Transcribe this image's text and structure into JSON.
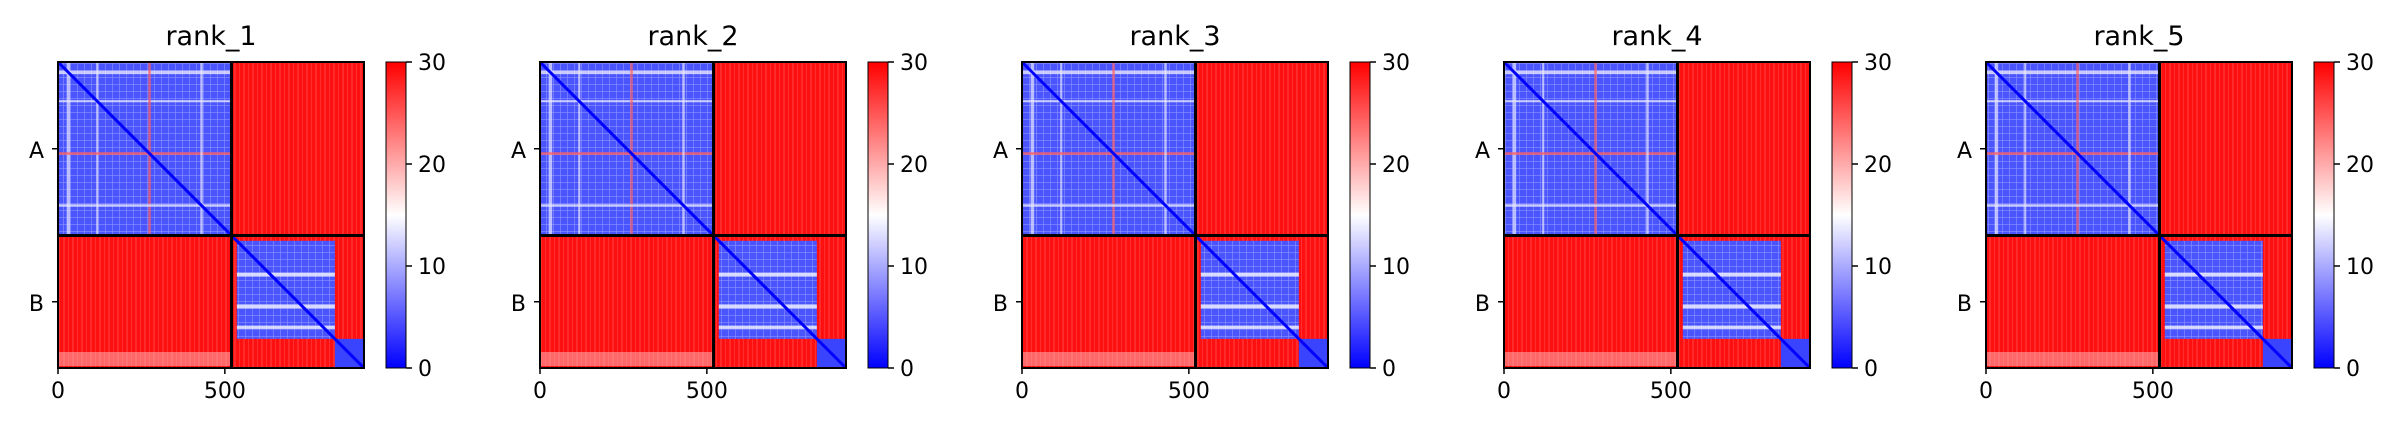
{
  "chart_data": [
    {
      "type": "heatmap",
      "title": "rank_1",
      "chains": [
        "A",
        "B"
      ],
      "chain_break": 520,
      "x_ticks": [
        0,
        500
      ],
      "x_tick_labels": [
        "0",
        "500"
      ],
      "xlim": [
        0,
        917
      ],
      "colorbar": {
        "vmin": 0,
        "vmax": 30,
        "ticks": [
          0,
          10,
          20,
          30
        ],
        "tick_labels": [
          "0",
          "10",
          "20",
          "30"
        ],
        "colormap": "bwr"
      },
      "description_value_range": [
        0,
        30
      ]
    },
    {
      "type": "heatmap",
      "title": "rank_2",
      "chains": [
        "A",
        "B"
      ],
      "chain_break": 520,
      "x_ticks": [
        0,
        500
      ],
      "x_tick_labels": [
        "0",
        "500"
      ],
      "xlim": [
        0,
        917
      ],
      "colorbar": {
        "vmin": 0,
        "vmax": 30,
        "ticks": [
          0,
          10,
          20,
          30
        ],
        "tick_labels": [
          "0",
          "10",
          "20",
          "30"
        ],
        "colormap": "bwr"
      }
    },
    {
      "type": "heatmap",
      "title": "rank_3",
      "chains": [
        "A",
        "B"
      ],
      "chain_break": 520,
      "x_ticks": [
        0,
        500
      ],
      "x_tick_labels": [
        "0",
        "500"
      ],
      "xlim": [
        0,
        917
      ],
      "colorbar": {
        "vmin": 0,
        "vmax": 30,
        "ticks": [
          0,
          10,
          20,
          30
        ],
        "tick_labels": [
          "0",
          "10",
          "20",
          "30"
        ],
        "colormap": "bwr"
      }
    },
    {
      "type": "heatmap",
      "title": "rank_4",
      "chains": [
        "A",
        "B"
      ],
      "chain_break": 520,
      "x_ticks": [
        0,
        500
      ],
      "x_tick_labels": [
        "0",
        "500"
      ],
      "xlim": [
        0,
        917
      ],
      "colorbar": {
        "vmin": 0,
        "vmax": 30,
        "ticks": [
          0,
          10,
          20,
          30
        ],
        "tick_labels": [
          "0",
          "10",
          "20",
          "30"
        ],
        "colormap": "bwr"
      }
    },
    {
      "type": "heatmap",
      "title": "rank_5",
      "chains": [
        "A",
        "B"
      ],
      "chain_break": 520,
      "x_ticks": [
        0,
        500
      ],
      "x_tick_labels": [
        "0",
        "500"
      ],
      "xlim": [
        0,
        917
      ],
      "colorbar": {
        "vmin": 0,
        "vmax": 30,
        "ticks": [
          0,
          10,
          20,
          30
        ],
        "tick_labels": [
          "0",
          "10",
          "20",
          "30"
        ],
        "colormap": "bwr"
      }
    }
  ],
  "colors": {
    "low": "#0000ff",
    "mid": "#ffffff",
    "high": "#ff0000",
    "divider": "#000000"
  }
}
